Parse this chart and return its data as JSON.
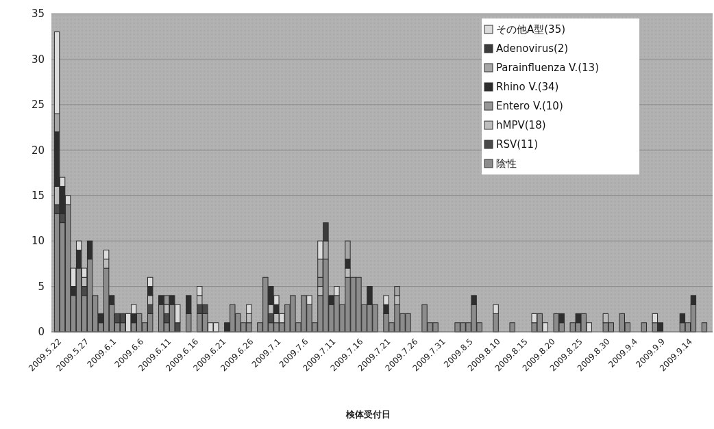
{
  "chart_data": {
    "type": "bar",
    "stacked": true,
    "xlabel": "検体受付日",
    "ylim": [
      0,
      35
    ],
    "yticks": [
      0,
      5,
      10,
      15,
      20,
      25,
      30,
      35
    ],
    "grid": "y",
    "legend": "top right",
    "categories": [
      "2009.5.22",
      null,
      null,
      null,
      null,
      "2009.5.27",
      null,
      null,
      null,
      null,
      "2009.6.1",
      null,
      null,
      null,
      null,
      "2009.6.6",
      null,
      null,
      null,
      null,
      "2009.6.11",
      null,
      null,
      null,
      null,
      "2009.6.16",
      null,
      null,
      null,
      null,
      "2009.6.21",
      null,
      null,
      null,
      null,
      "2009.6.26",
      null,
      null,
      null,
      null,
      "2009.7.1",
      null,
      null,
      null,
      null,
      "2009.7.6",
      null,
      null,
      null,
      null,
      "2009.7.11",
      null,
      null,
      null,
      null,
      "2009.7.16",
      null,
      null,
      null,
      null,
      "2009.7.21",
      null,
      null,
      null,
      null,
      "2009.7.26",
      null,
      null,
      null,
      null,
      "2009.7.31",
      null,
      null,
      null,
      null,
      "2009.8.5",
      null,
      null,
      null,
      null,
      "2009.8.10",
      null,
      null,
      null,
      null,
      "2009.8.15",
      null,
      null,
      null,
      null,
      "2009.8.20",
      null,
      null,
      null,
      null,
      "2009.8.25",
      null,
      null,
      null,
      null,
      "2009.8.30",
      null,
      null,
      null,
      null,
      "2009.9.4",
      null,
      null,
      null,
      null,
      "2009.9.9",
      null,
      null,
      null,
      null,
      "2009.9.14",
      null,
      null,
      null,
      null
    ],
    "series": [
      {
        "name": "陰性",
        "color": "#8c8c8c",
        "values": [
          13,
          12,
          14,
          4,
          7,
          4,
          8,
          4,
          1,
          7,
          3,
          1,
          1,
          0,
          1,
          2,
          1,
          2,
          0,
          3,
          1,
          3,
          0,
          0,
          2,
          0,
          2,
          2,
          0,
          0,
          0,
          0,
          3,
          2,
          1,
          1,
          0,
          1,
          6,
          1,
          1,
          1,
          3,
          4,
          1,
          4,
          3,
          1,
          4,
          8,
          3,
          4,
          3,
          6,
          6,
          6,
          3,
          3,
          3,
          0,
          2,
          1,
          3,
          2,
          2,
          0,
          0,
          3,
          1,
          1,
          0,
          0,
          0,
          1,
          1,
          1,
          3,
          1,
          0,
          0,
          2,
          0,
          0,
          1,
          0,
          0,
          0,
          1,
          2,
          0,
          0,
          2,
          1,
          0,
          1,
          1,
          2,
          0,
          0,
          0,
          1,
          1,
          0,
          2,
          1,
          0,
          0,
          1,
          0,
          1,
          0,
          0,
          0,
          0,
          1,
          1,
          3,
          0,
          1,
          0
        ]
      },
      {
        "name": "RSV(11)",
        "color": "#4a4a4a",
        "values": [
          1,
          1,
          0,
          0,
          0,
          1,
          0,
          0,
          0,
          0,
          0,
          1,
          1,
          0,
          0,
          0,
          0,
          1,
          0,
          0,
          1,
          0,
          1,
          0,
          0,
          0,
          1,
          1,
          0,
          0,
          0,
          0,
          0,
          0,
          0,
          0,
          0,
          0,
          0,
          1,
          0,
          0,
          0,
          0,
          0,
          0,
          0,
          0,
          0,
          0,
          0,
          0,
          0,
          0,
          0,
          0,
          0,
          0,
          0,
          0,
          0,
          0,
          0,
          0,
          0,
          0,
          0,
          0,
          0,
          0,
          0,
          0,
          0,
          0,
          0,
          0,
          0,
          0,
          0,
          0,
          0,
          0,
          0,
          0,
          0,
          0,
          0,
          0,
          0,
          0,
          0,
          0,
          0,
          0,
          0,
          0,
          0,
          0,
          0,
          0,
          0,
          0,
          0,
          0,
          0,
          0,
          0,
          0,
          0,
          0,
          0,
          0,
          0,
          0,
          0,
          0,
          0,
          0,
          0,
          0
        ]
      },
      {
        "name": "hMPV(18)",
        "color": "#bdbdbd",
        "values": [
          2,
          0,
          0,
          0,
          0,
          1,
          0,
          0,
          0,
          1,
          0,
          0,
          0,
          0,
          0,
          0,
          0,
          1,
          0,
          0,
          1,
          0,
          0,
          0,
          0,
          0,
          1,
          0,
          0,
          0,
          0,
          0,
          0,
          0,
          0,
          1,
          0,
          0,
          0,
          1,
          1,
          0,
          0,
          0,
          0,
          0,
          0,
          0,
          1,
          0,
          0,
          0,
          0,
          1,
          0,
          0,
          0,
          0,
          0,
          0,
          0,
          0,
          1,
          0,
          0,
          0,
          0,
          0,
          0,
          0,
          0,
          0,
          0,
          0,
          0,
          0,
          0,
          0,
          0,
          0,
          0,
          0,
          0,
          0,
          0,
          0,
          0,
          0,
          0,
          0,
          0,
          0,
          0,
          0,
          0,
          0,
          0,
          0,
          0,
          0,
          1,
          0,
          0,
          0,
          0,
          0,
          0,
          0,
          0,
          0,
          0,
          0,
          0,
          0,
          0,
          0,
          0,
          0,
          0,
          0
        ]
      },
      {
        "name": "Entero V.(10)",
        "color": "#969696",
        "values": [
          0,
          0,
          0,
          0,
          0,
          0,
          0,
          0,
          0,
          0,
          0,
          0,
          0,
          0,
          0,
          0,
          0,
          0,
          0,
          0,
          1,
          0,
          0,
          0,
          0,
          0,
          0,
          0,
          0,
          0,
          0,
          0,
          0,
          0,
          0,
          0,
          0,
          0,
          0,
          0,
          0,
          0,
          0,
          0,
          0,
          0,
          0,
          0,
          1,
          0,
          0,
          0,
          0,
          0,
          0,
          0,
          0,
          0,
          0,
          0,
          0,
          0,
          0,
          0,
          0,
          0,
          0,
          0,
          0,
          0,
          0,
          0,
          0,
          0,
          0,
          0,
          0,
          0,
          0,
          0,
          0,
          0,
          0,
          0,
          0,
          0,
          0,
          0,
          0,
          0,
          0,
          0,
          0,
          0,
          0,
          0,
          0,
          0,
          0,
          0,
          0,
          0,
          0,
          0,
          0,
          0,
          0,
          0,
          0,
          0,
          0,
          0,
          0,
          0,
          0,
          0,
          0,
          0,
          0,
          0
        ]
      },
      {
        "name": "Rhino V.(34)",
        "color": "#2e2e2e",
        "values": [
          6,
          3,
          0,
          1,
          2,
          0,
          2,
          0,
          1,
          0,
          1,
          0,
          0,
          0,
          1,
          0,
          0,
          1,
          0,
          1,
          0,
          1,
          0,
          0,
          2,
          0,
          0,
          0,
          0,
          0,
          0,
          1,
          0,
          0,
          0,
          0,
          0,
          0,
          0,
          2,
          1,
          0,
          0,
          0,
          0,
          0,
          0,
          0,
          0,
          0,
          1,
          0,
          0,
          1,
          0,
          0,
          0,
          2,
          0,
          0,
          1,
          0,
          0,
          0,
          0,
          0,
          0,
          0,
          0,
          0,
          0,
          0,
          0,
          0,
          0,
          0,
          1,
          0,
          0,
          0,
          0,
          0,
          0,
          0,
          0,
          0,
          0,
          0,
          0,
          0,
          0,
          0,
          1,
          0,
          0,
          1,
          0,
          0,
          0,
          0,
          0,
          0,
          0,
          0,
          0,
          0,
          0,
          0,
          0,
          0,
          1,
          0,
          0,
          0,
          1,
          0,
          1,
          0,
          0,
          0
        ]
      },
      {
        "name": "Parainfluenza V.(13)",
        "color": "#a6a6a6",
        "values": [
          2,
          0,
          0,
          0,
          0,
          0,
          0,
          0,
          0,
          0,
          0,
          0,
          0,
          0,
          0,
          0,
          0,
          0,
          0,
          0,
          0,
          0,
          0,
          0,
          0,
          0,
          0,
          0,
          0,
          0,
          0,
          0,
          0,
          0,
          0,
          0,
          0,
          0,
          0,
          0,
          0,
          0,
          0,
          0,
          0,
          0,
          0,
          0,
          2,
          2,
          0,
          0,
          0,
          2,
          0,
          0,
          0,
          0,
          0,
          0,
          0,
          0,
          1,
          0,
          0,
          0,
          0,
          0,
          0,
          0,
          0,
          0,
          0,
          0,
          0,
          0,
          0,
          0,
          0,
          0,
          0,
          0,
          0,
          0,
          0,
          0,
          0,
          0,
          0,
          0,
          0,
          0,
          0,
          0,
          0,
          0,
          0,
          0,
          0,
          0,
          0,
          0,
          0,
          0,
          0,
          0,
          0,
          0,
          0,
          0,
          0,
          0,
          0,
          0,
          0,
          0,
          0,
          0,
          0,
          0
        ]
      },
      {
        "name": "Adenovirus(2)",
        "color": "#3c3c3c",
        "values": [
          0,
          0,
          0,
          0,
          0,
          0,
          0,
          0,
          0,
          0,
          0,
          0,
          0,
          0,
          0,
          0,
          0,
          0,
          0,
          0,
          0,
          0,
          0,
          0,
          0,
          0,
          0,
          0,
          0,
          0,
          0,
          0,
          0,
          0,
          0,
          0,
          0,
          0,
          0,
          0,
          0,
          0,
          0,
          0,
          0,
          0,
          0,
          0,
          0,
          2,
          0,
          0,
          0,
          0,
          0,
          0,
          0,
          0,
          0,
          0,
          0,
          0,
          0,
          0,
          0,
          0,
          0,
          0,
          0,
          0,
          0,
          0,
          0,
          0,
          0,
          0,
          0,
          0,
          0,
          0,
          0,
          0,
          0,
          0,
          0,
          0,
          0,
          0,
          0,
          0,
          0,
          0,
          0,
          0,
          0,
          0,
          0,
          0,
          0,
          0,
          0,
          0,
          0,
          0,
          0,
          0,
          0,
          0,
          0,
          0,
          0,
          0,
          0,
          0,
          0,
          0,
          0,
          0,
          0,
          0
        ]
      },
      {
        "name": "その他A型(35)",
        "color": "#dcdcdc",
        "values": [
          9,
          1,
          1,
          2,
          1,
          1,
          0,
          0,
          0,
          1,
          0,
          0,
          0,
          2,
          1,
          0,
          0,
          1,
          0,
          0,
          0,
          0,
          2,
          0,
          0,
          0,
          1,
          0,
          1,
          1,
          0,
          0,
          0,
          0,
          0,
          1,
          0,
          0,
          0,
          0,
          1,
          1,
          0,
          0,
          0,
          0,
          1,
          0,
          2,
          0,
          0,
          1,
          0,
          0,
          0,
          0,
          0,
          0,
          0,
          0,
          1,
          0,
          0,
          0,
          0,
          0,
          0,
          0,
          0,
          0,
          0,
          0,
          0,
          0,
          0,
          0,
          0,
          0,
          0,
          0,
          1,
          0,
          0,
          0,
          0,
          0,
          0,
          1,
          0,
          1,
          0,
          0,
          0,
          0,
          0,
          0,
          0,
          1,
          0,
          0,
          0,
          0,
          0,
          0,
          0,
          0,
          0,
          0,
          0,
          1,
          0,
          0,
          0,
          0,
          0,
          0,
          0,
          0,
          0,
          0
        ]
      }
    ]
  }
}
